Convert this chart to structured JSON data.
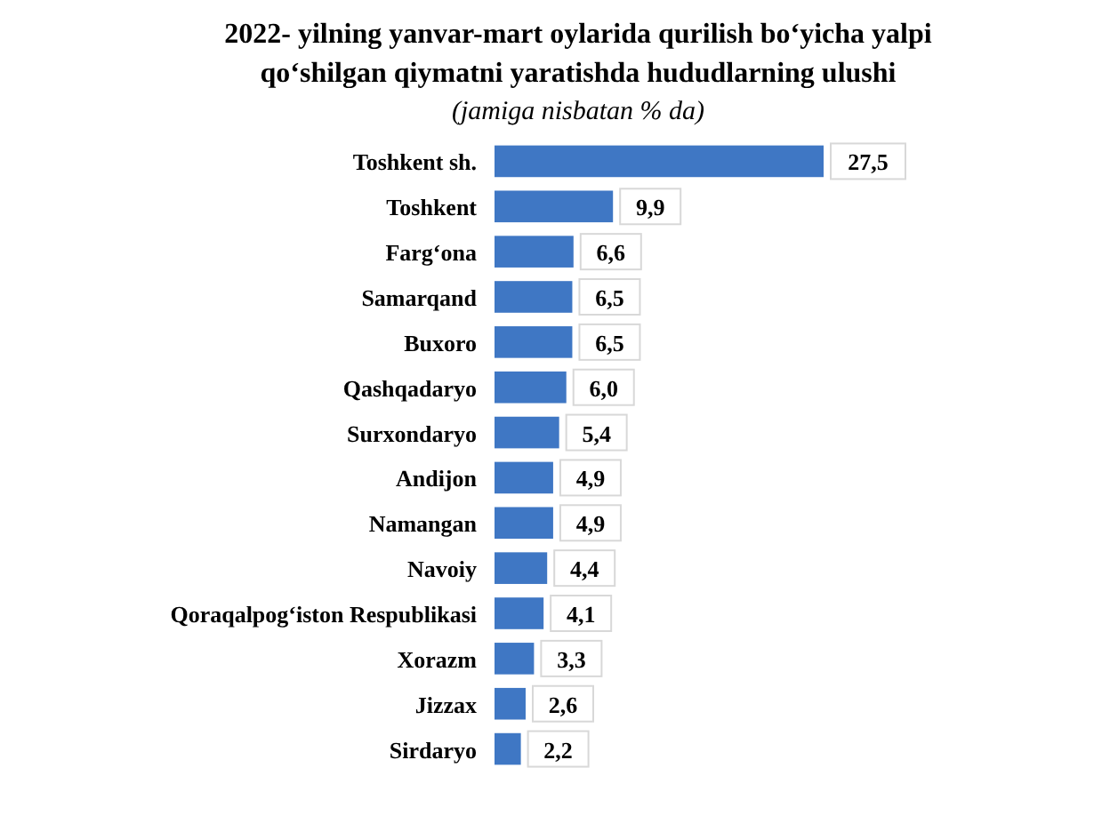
{
  "chart_data": {
    "type": "bar",
    "orientation": "horizontal",
    "title": "2022- yilning yanvar-mart oylarida qurilish bo‘yicha yalpi qo‘shilgan qiymatni yaratishda hududlarning ulushi",
    "subtitle": "(jamiga nisbatan % da)",
    "categories": [
      "Toshkent sh.",
      "Toshkent",
      "Farg‘ona",
      "Samarqand",
      "Buxoro",
      "Qashqadaryo",
      "Surxondaryo",
      "Andijon",
      "Namangan",
      "Navoiy",
      "Qoraqalpog‘iston Respublikasi",
      "Xorazm",
      "Jizzax",
      "Sirdaryo"
    ],
    "values": [
      27.5,
      9.9,
      6.6,
      6.5,
      6.5,
      6.0,
      5.4,
      4.9,
      4.9,
      4.4,
      4.1,
      3.3,
      2.6,
      2.2
    ],
    "value_labels": [
      "27,5",
      "9,9",
      "6,6",
      "6,5",
      "6,5",
      "6,0",
      "5,4",
      "4,9",
      "4,9",
      "4,4",
      "4,1",
      "3,3",
      "2,6",
      "2,2"
    ],
    "color": "#3f77c4"
  }
}
